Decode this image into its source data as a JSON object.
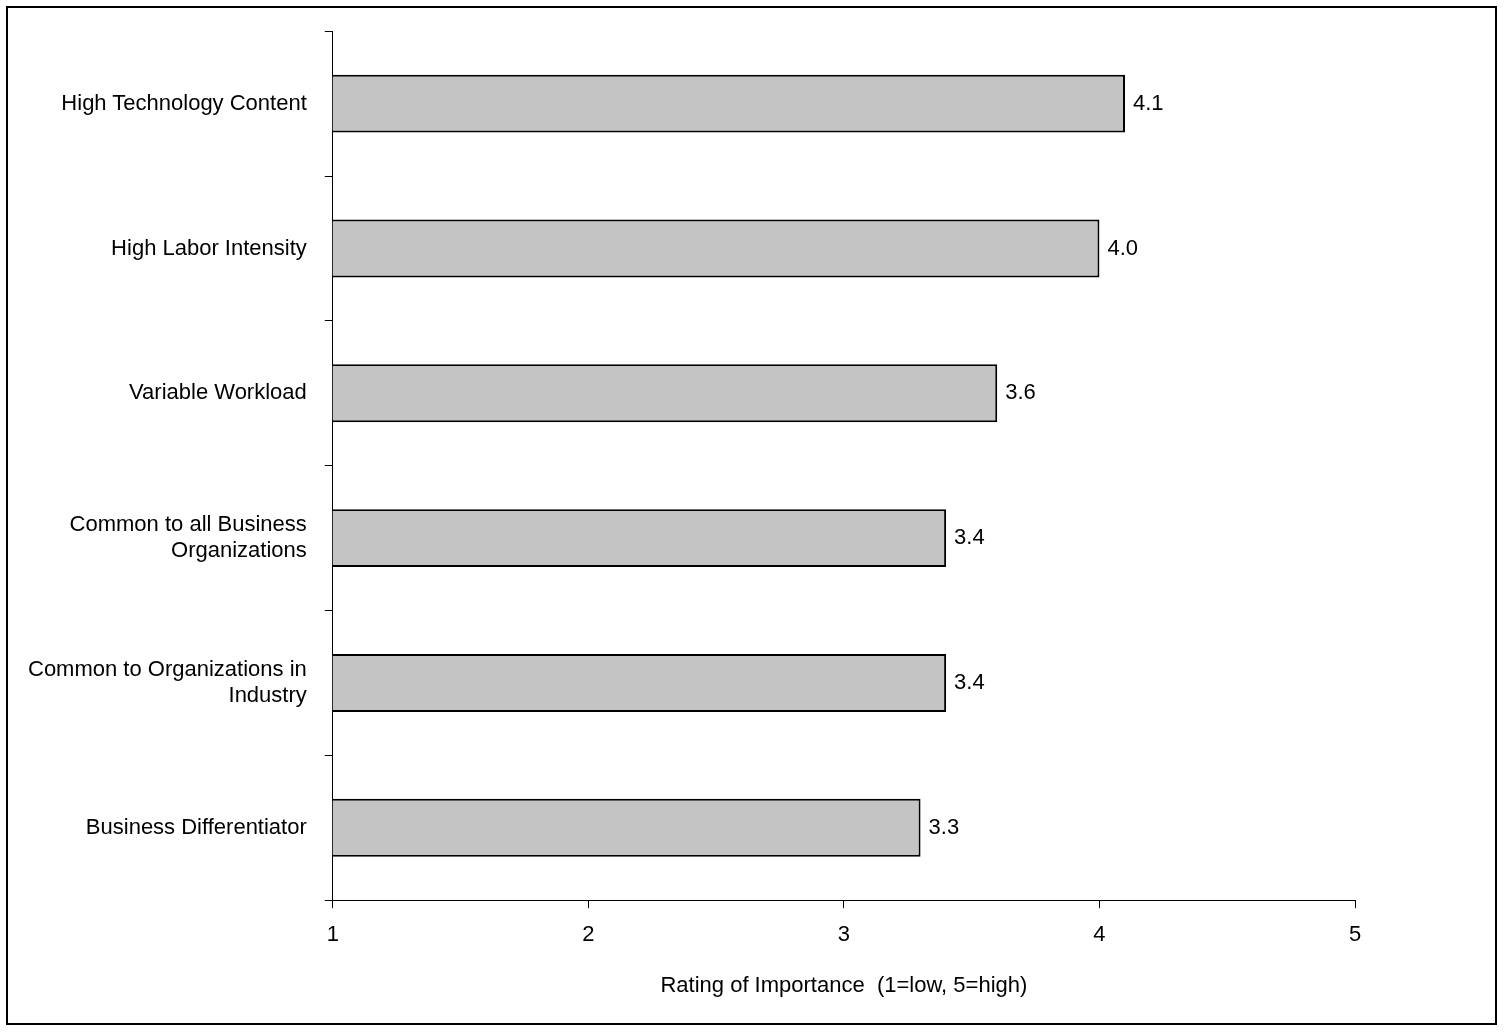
{
  "chart_data": {
    "type": "bar",
    "orientation": "horizontal",
    "xlabel": "Rating of Importance  (1=low, 5=high)",
    "categories": [
      "High Technology Content",
      "High Labor Intensity",
      "Variable Workload",
      "Common to all Business Organizations",
      "Common to Organizations in Industry",
      "Business Differentiator"
    ],
    "values": [
      4.1,
      4.0,
      3.6,
      3.4,
      3.4,
      3.3
    ],
    "value_labels": [
      "4.1",
      "4.0",
      "3.6",
      "3.4",
      "3.4",
      "3.3"
    ],
    "color": "#c4c4c4",
    "xlim": [
      1,
      5
    ],
    "xticks": [
      1,
      2,
      3,
      4,
      5
    ],
    "grid": false,
    "legend": false
  }
}
